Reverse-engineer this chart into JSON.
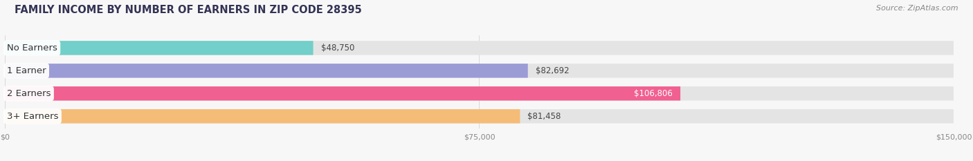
{
  "title": "FAMILY INCOME BY NUMBER OF EARNERS IN ZIP CODE 28395",
  "source": "Source: ZipAtlas.com",
  "categories": [
    "No Earners",
    "1 Earner",
    "2 Earners",
    "3+ Earners"
  ],
  "values": [
    48750,
    82692,
    106806,
    81458
  ],
  "value_labels": [
    "$48,750",
    "$82,692",
    "$106,806",
    "$81,458"
  ],
  "bar_colors": [
    "#72cfc9",
    "#9b9bd6",
    "#f06090",
    "#f5bc78"
  ],
  "bar_bg_color": "#e4e4e4",
  "background_color": "#f7f7f7",
  "xmax": 150000,
  "xticks": [
    0,
    75000,
    150000
  ],
  "xtick_labels": [
    "$0",
    "$75,000",
    "$150,000"
  ],
  "title_fontsize": 10.5,
  "source_fontsize": 8,
  "label_fontsize": 9.5,
  "value_fontsize": 8.5,
  "bar_height": 0.62,
  "value_inside": [
    false,
    false,
    true,
    false
  ]
}
